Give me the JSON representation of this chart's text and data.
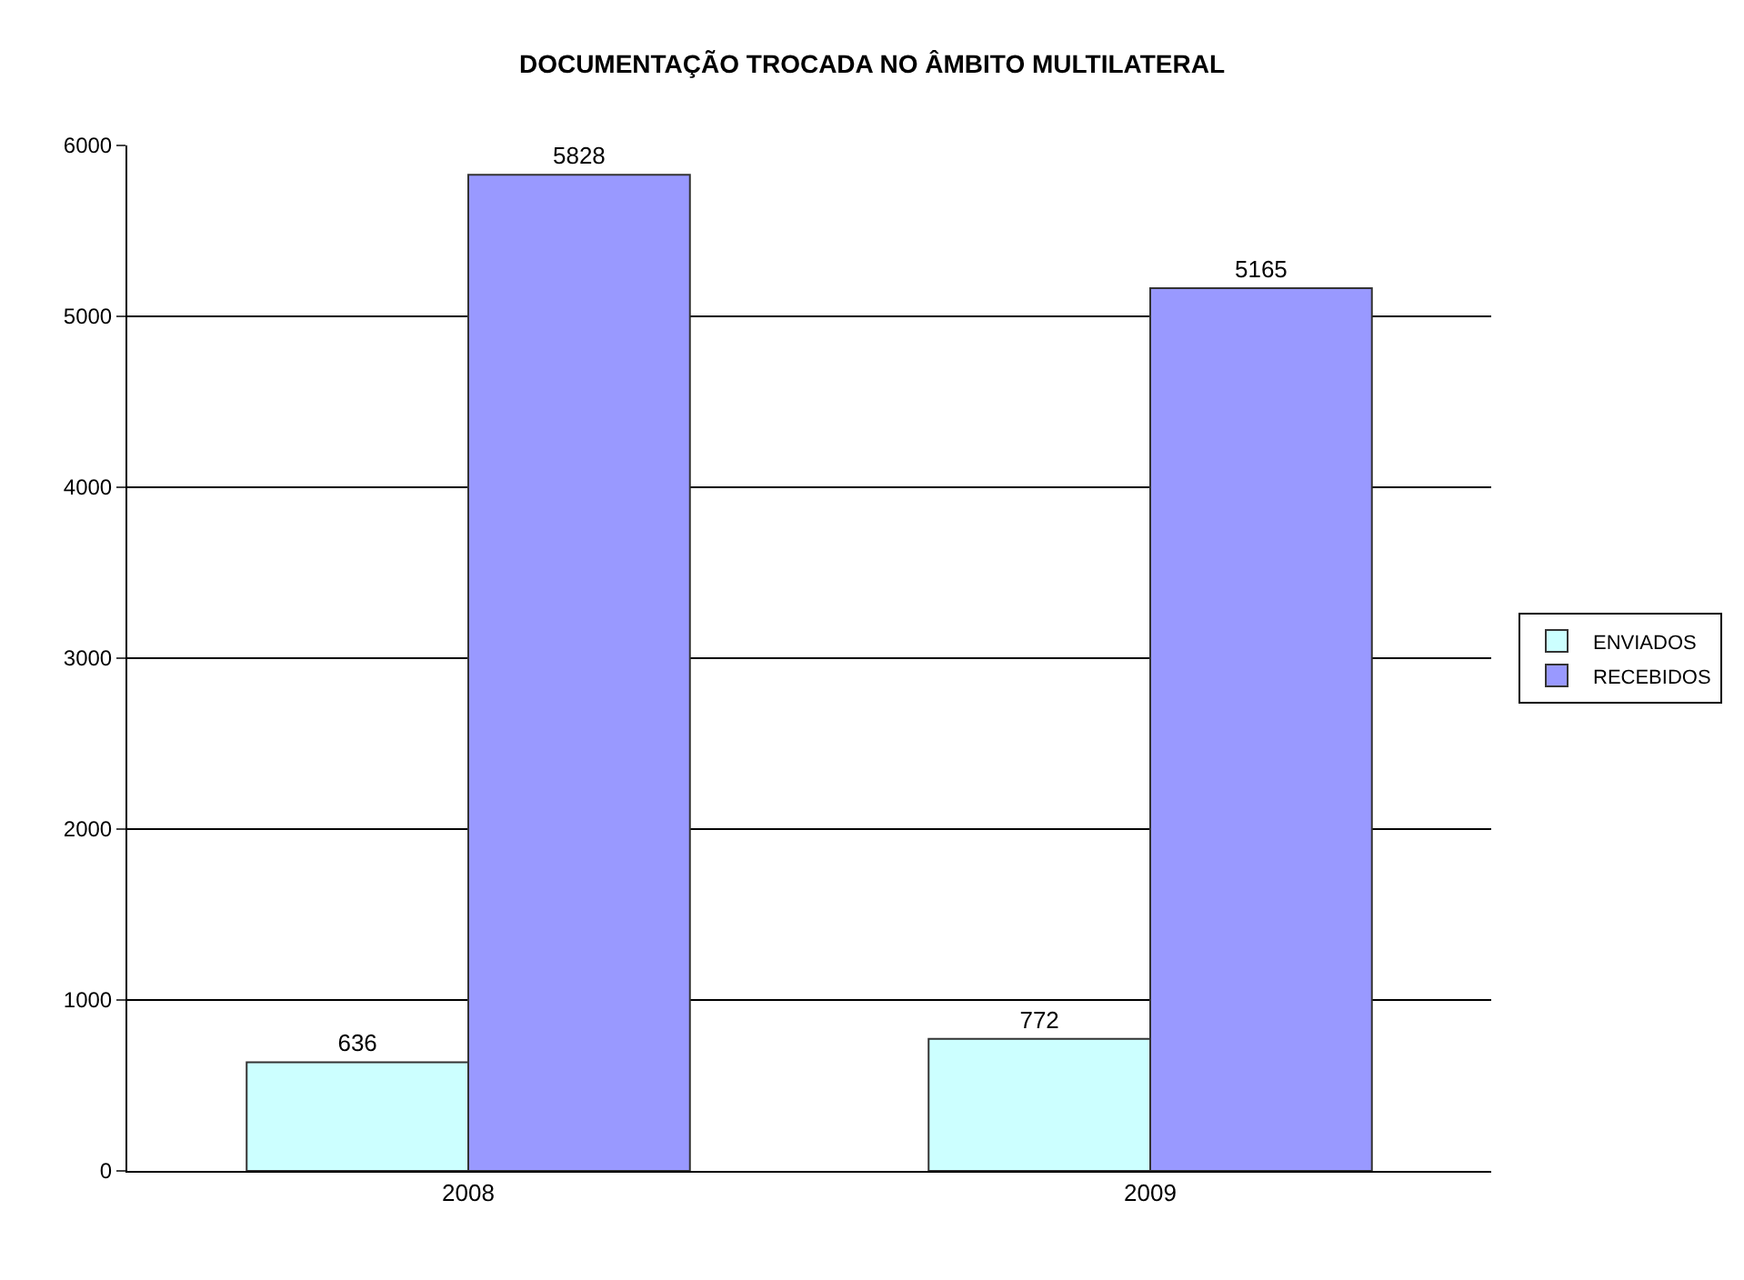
{
  "chart_data": {
    "type": "bar",
    "title": "DOCUMENTAÇÃO TROCADA NO ÂMBITO MULTILATERAL",
    "categories": [
      "2008",
      "2009"
    ],
    "series": [
      {
        "name": "ENVIADOS",
        "color": "#ccffff",
        "values": [
          636,
          772
        ]
      },
      {
        "name": "RECEBIDOS",
        "color": "#9999ff",
        "values": [
          5828,
          5165
        ]
      }
    ],
    "ylim": [
      0,
      6000
    ],
    "yticks": [
      0,
      1000,
      2000,
      3000,
      4000,
      5000,
      6000
    ],
    "grid": "y",
    "legend": "right",
    "data_labels": true
  }
}
